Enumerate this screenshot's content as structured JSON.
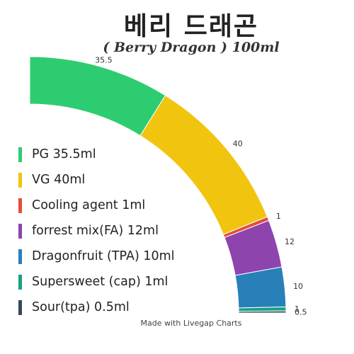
{
  "header": {
    "title": "베리 드래곤",
    "subtitle": "( Berry Dragon ) 100ml"
  },
  "footer": {
    "credit": "Made with Livegap Charts"
  },
  "chart_data": {
    "type": "pie",
    "categories": [
      "PG",
      "VG",
      "Cooling agent",
      "forrest mix(FA)",
      "Dragonfruit (TPA)",
      "Supersweet (cap)",
      "Sour(tpa)"
    ],
    "values": [
      35.5,
      40,
      1,
      12,
      10,
      1,
      0.5
    ],
    "data_labels": [
      "35.5",
      "40",
      "1",
      "12",
      "10",
      "1",
      "0.5"
    ],
    "legend_labels": [
      "PG 35.5ml",
      "VG 40ml",
      "Cooling agent 1ml",
      "forrest mix(FA) 12ml",
      "Dragonfruit (TPA) 10ml",
      "Supersweet (cap) 1ml",
      "Sour(tpa) 0.5ml"
    ],
    "colors": [
      "#2ecc71",
      "#f1c40f",
      "#e74c3c",
      "#8e44ad",
      "#2980b9",
      "#16a085",
      "#34495e"
    ],
    "legend_position": "left"
  }
}
